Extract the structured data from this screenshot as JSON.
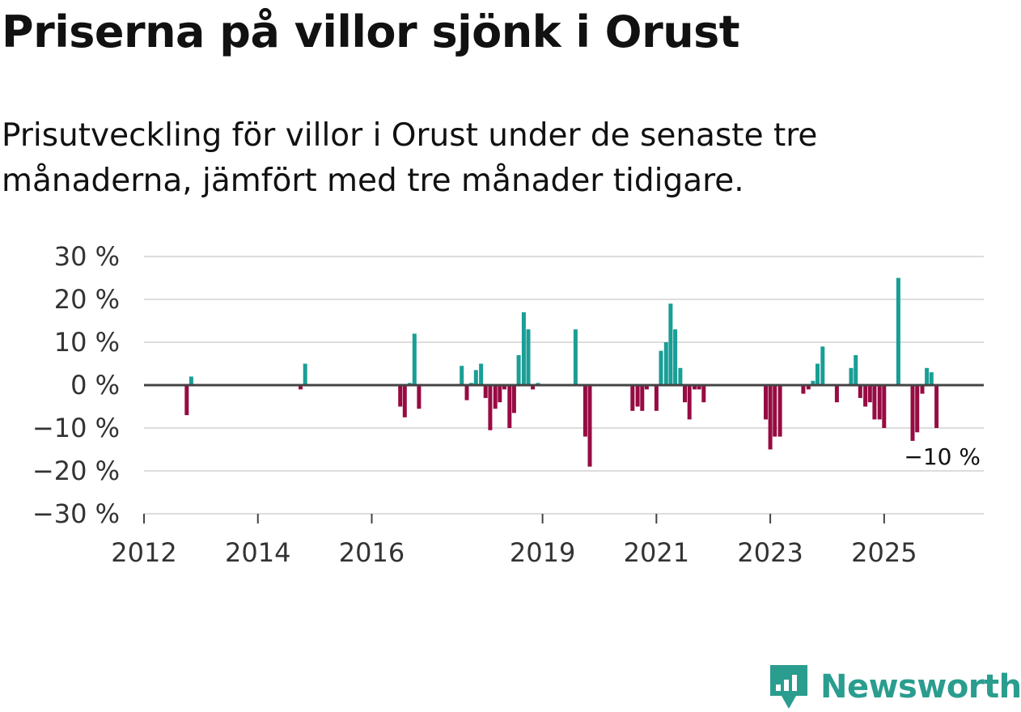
{
  "header": {
    "title": "Priserna på villor sjönk i Orust",
    "subtitle": "Prisutveckling för villor i Orust under de senaste tre månaderna, jämfört med tre månader tidigare."
  },
  "brand": {
    "name": "Newsworthy"
  },
  "colors": {
    "positive": "#1a9e96",
    "negative": "#970b43",
    "grid": "#dddddd",
    "zero_line": "#444444"
  },
  "chart_data": {
    "type": "bar",
    "title": "Priserna på villor sjönk i Orust",
    "subtitle": "Prisutveckling för villor i Orust under de senaste tre månaderna, jämfört med tre månader tidigare.",
    "ylabel": "",
    "xlabel": "",
    "ylim": [
      -30,
      30
    ],
    "y_ticks": [
      30,
      20,
      10,
      0,
      -10,
      -20,
      -30
    ],
    "y_tick_labels": [
      "30 %",
      "20 %",
      "10 %",
      "0 %",
      "−10 %",
      "−20 %",
      "−30 %"
    ],
    "x_ticks": [
      2012,
      2014,
      2016,
      2019,
      2021,
      2023,
      2025
    ],
    "x_tick_labels": [
      "2012",
      "2014",
      "2016",
      "2019",
      "2021",
      "2023",
      "2025"
    ],
    "x_range": [
      2012.0,
      2026.75
    ],
    "annotation": {
      "text": "−10 %",
      "x": 2025.9,
      "value": -10
    },
    "series": [
      {
        "name": "Prisutveckling",
        "x": [
          2012.75,
          2012.83,
          2014.75,
          2014.83,
          2016.5,
          2016.58,
          2016.67,
          2016.75,
          2016.83,
          2017.58,
          2017.67,
          2017.75,
          2017.83,
          2017.92,
          2018.0,
          2018.08,
          2018.17,
          2018.25,
          2018.33,
          2018.42,
          2018.5,
          2018.58,
          2018.67,
          2018.75,
          2018.83,
          2018.92,
          2019.58,
          2019.75,
          2019.83,
          2020.58,
          2020.67,
          2020.75,
          2020.83,
          2021.0,
          2021.08,
          2021.17,
          2021.25,
          2021.33,
          2021.42,
          2021.5,
          2021.58,
          2021.67,
          2021.75,
          2021.83,
          2022.92,
          2023.0,
          2023.08,
          2023.17,
          2023.58,
          2023.67,
          2023.75,
          2023.83,
          2023.92,
          2024.17,
          2024.42,
          2024.5,
          2024.58,
          2024.67,
          2024.75,
          2024.83,
          2024.92,
          2025.0,
          2025.25,
          2025.5,
          2025.58,
          2025.67,
          2025.75,
          2025.83,
          2025.92
        ],
        "values": [
          -7,
          2,
          -1,
          5,
          -5,
          -7.5,
          0.5,
          12,
          -5.5,
          4.5,
          -3.5,
          0.5,
          3.5,
          5,
          -3,
          -10.5,
          -5.5,
          -4,
          -1,
          -10,
          -6.5,
          7,
          17,
          13,
          -1,
          0.5,
          13,
          -12,
          -19,
          -6,
          -5,
          -6,
          -1,
          -6,
          8,
          10,
          19,
          13,
          4,
          -4,
          -8,
          -1,
          -1,
          -4,
          -8,
          -15,
          -12,
          -12,
          -2,
          -1,
          1,
          5,
          9,
          -4,
          4,
          7,
          -3,
          -5,
          -4,
          -8,
          -8,
          -10,
          25,
          -13,
          -11,
          -2,
          4,
          3,
          -10
        ]
      }
    ]
  }
}
